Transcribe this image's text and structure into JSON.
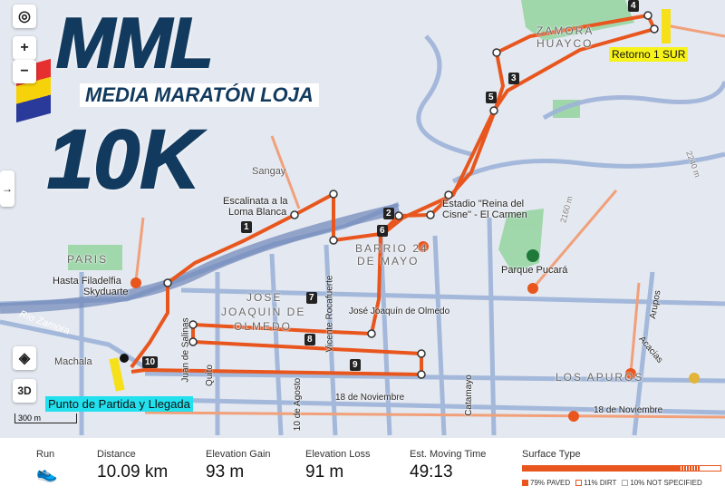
{
  "logo": {
    "title": "MML",
    "subtitle": "MEDIA MARATÓN LOJA",
    "distance": "10K"
  },
  "controls": {
    "locate": "locate-icon",
    "zoom_in": "+",
    "zoom_out": "−",
    "expand": "→",
    "layers": "layers-icon",
    "three_d": "3D",
    "scale": "300 m"
  },
  "labels": {
    "zamora": "ZAMORA",
    "huayco": "HUAYCO",
    "retorno": "Retorno 1 SUR",
    "sangay": "Sangay",
    "escalinata": "Escalinata a la",
    "loma": "Loma Blanca",
    "estadio1": "Estadio \"Reina del",
    "estadio2": "Cisne\" - El Carmen",
    "barrio1": "BARRIO 24",
    "barrio2": "DE MAYO",
    "paris": "PARIS",
    "hasta1": "Hasta Filadelfia",
    "hasta2": "Skyduarte",
    "jose1": "JOSE",
    "jose2": "JOAQUIN DE",
    "jose3": "OLMEDO",
    "olmedo_st": "José Joaquín de Olmedo",
    "pucara": "Parque Pucará",
    "rio": "Río Zamora",
    "machala": "Machala",
    "salinas": "Juan de Salinas",
    "quito": "Quito",
    "agosto": "10 de Agosto",
    "rocafuerte": "Vicente Rocafuerte",
    "catamayo": "Catamayo",
    "nov1": "18 de Noviembre",
    "nov2": "18 de Noviembre",
    "apuros": "LOS APUROS",
    "arupos": "Arupos",
    "acacias": "Acacias",
    "elev1": "2160 m",
    "elev2": "2240 m",
    "start": "Punto de Partida y Llegada"
  },
  "markers": [
    "1",
    "2",
    "3",
    "4",
    "5",
    "6",
    "7",
    "8",
    "9",
    "10"
  ],
  "stats": {
    "activity": {
      "label": "Run",
      "icon": "shoe-icon"
    },
    "distance": {
      "label": "Distance",
      "value": "10.09 km"
    },
    "gain": {
      "label": "Elevation Gain",
      "value": "93 m"
    },
    "loss": {
      "label": "Elevation Loss",
      "value": "91 m"
    },
    "time": {
      "label": "Est. Moving Time",
      "value": "49:13"
    },
    "surface": {
      "label": "Surface Type",
      "paved": "79% PAVED",
      "dirt": "11% DIRT",
      "unspecified": "10% NOT SPECIFIED",
      "paved_pct": 79,
      "dirt_pct": 11,
      "unspecified_pct": 10
    }
  },
  "colors": {
    "route": "#e8561e",
    "road": "#9db3d8",
    "park": "#8fd39b",
    "start_tag": "#22e0ee",
    "retorno_tag": "#f6f21a"
  }
}
